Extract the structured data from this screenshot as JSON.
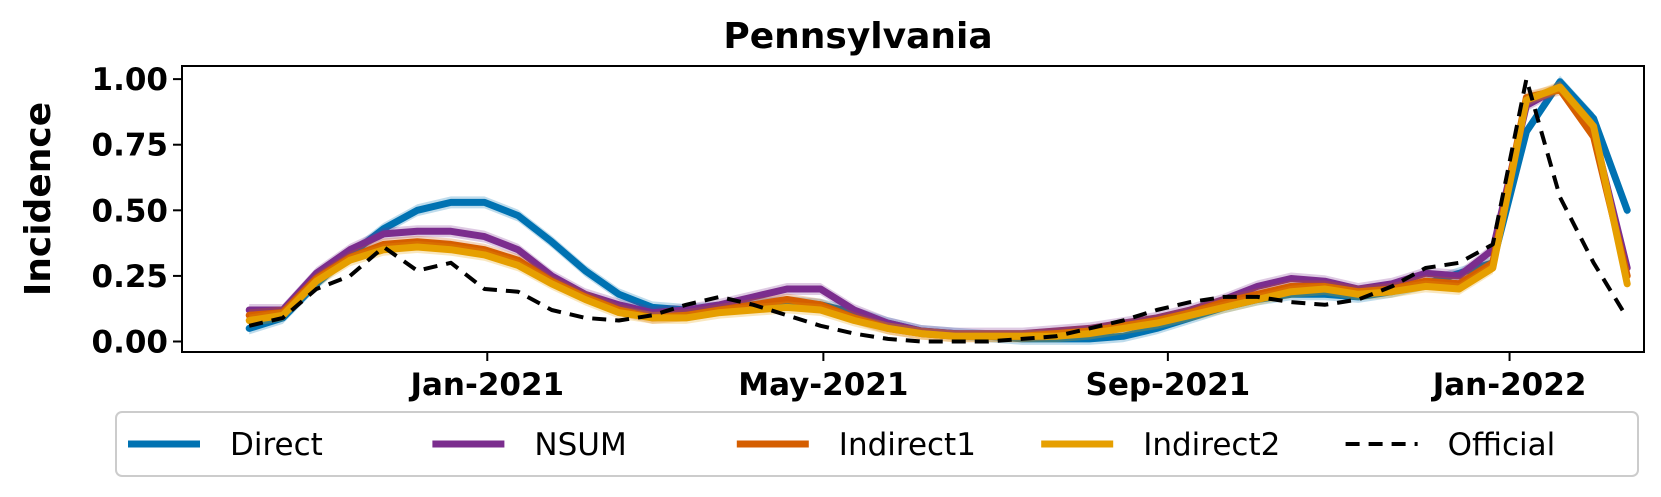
{
  "chart_data": {
    "type": "line",
    "title": "Pennsylvania",
    "xlabel": "",
    "ylabel": "Incidence",
    "x_start": "2020-09-14",
    "x": [
      "2020-10-08",
      "2020-10-20",
      "2020-11-01",
      "2020-11-13",
      "2020-11-25",
      "2020-12-07",
      "2020-12-19",
      "2020-12-31",
      "2021-01-12",
      "2021-01-24",
      "2021-02-05",
      "2021-02-17",
      "2021-03-01",
      "2021-03-13",
      "2021-03-25",
      "2021-04-06",
      "2021-04-18",
      "2021-04-30",
      "2021-05-12",
      "2021-05-24",
      "2021-06-05",
      "2021-06-17",
      "2021-06-29",
      "2021-07-11",
      "2021-07-23",
      "2021-08-04",
      "2021-08-16",
      "2021-08-28",
      "2021-09-09",
      "2021-09-21",
      "2021-10-03",
      "2021-10-15",
      "2021-10-27",
      "2021-11-08",
      "2021-11-20",
      "2021-12-02",
      "2021-12-14",
      "2021-12-26",
      "2022-01-07",
      "2022-01-19",
      "2022-01-31",
      "2022-02-12"
    ],
    "x_end": "2022-02-18",
    "xticks": [
      {
        "label": "Jan-2021",
        "date": "2021-01-01"
      },
      {
        "label": "May-2021",
        "date": "2021-05-01"
      },
      {
        "label": "Sep-2021",
        "date": "2021-09-01"
      },
      {
        "label": "Jan-2022",
        "date": "2022-01-01"
      }
    ],
    "ylim": [
      -0.04,
      1.05
    ],
    "yticks": [
      "0.00",
      "0.25",
      "0.50",
      "0.75",
      "1.00"
    ],
    "series": [
      {
        "name": "Direct",
        "color": "#0072B2",
        "style": "solid",
        "values": [
          0.05,
          0.09,
          0.22,
          0.33,
          0.43,
          0.5,
          0.53,
          0.53,
          0.48,
          0.38,
          0.27,
          0.18,
          0.13,
          0.12,
          0.13,
          0.14,
          0.15,
          0.14,
          0.11,
          0.07,
          0.04,
          0.03,
          0.02,
          0.01,
          0.01,
          0.01,
          0.02,
          0.05,
          0.09,
          0.13,
          0.16,
          0.18,
          0.18,
          0.17,
          0.19,
          0.22,
          0.26,
          0.3,
          0.8,
          0.99,
          0.85,
          0.5
        ]
      },
      {
        "name": "NSUM",
        "color": "#7B2D8E",
        "style": "solid",
        "values": [
          0.12,
          0.12,
          0.26,
          0.35,
          0.41,
          0.42,
          0.42,
          0.4,
          0.35,
          0.25,
          0.18,
          0.14,
          0.11,
          0.12,
          0.14,
          0.17,
          0.2,
          0.2,
          0.12,
          0.07,
          0.04,
          0.03,
          0.03,
          0.03,
          0.04,
          0.05,
          0.07,
          0.09,
          0.12,
          0.16,
          0.21,
          0.24,
          0.23,
          0.2,
          0.22,
          0.26,
          0.25,
          0.35,
          0.9,
          0.97,
          0.8,
          0.28
        ]
      },
      {
        "name": "Indirect1",
        "color": "#D55E00",
        "style": "solid",
        "values": [
          0.1,
          0.11,
          0.24,
          0.32,
          0.37,
          0.38,
          0.37,
          0.35,
          0.31,
          0.23,
          0.17,
          0.12,
          0.09,
          0.1,
          0.12,
          0.14,
          0.16,
          0.14,
          0.09,
          0.05,
          0.03,
          0.02,
          0.02,
          0.02,
          0.03,
          0.04,
          0.06,
          0.08,
          0.11,
          0.15,
          0.18,
          0.21,
          0.21,
          0.19,
          0.2,
          0.23,
          0.22,
          0.3,
          0.93,
          0.96,
          0.78,
          0.25
        ]
      },
      {
        "name": "Indirect2",
        "color": "#E69F00",
        "style": "solid",
        "values": [
          0.08,
          0.1,
          0.23,
          0.31,
          0.35,
          0.36,
          0.35,
          0.33,
          0.29,
          0.22,
          0.16,
          0.11,
          0.09,
          0.09,
          0.11,
          0.12,
          0.13,
          0.12,
          0.08,
          0.05,
          0.03,
          0.02,
          0.02,
          0.02,
          0.02,
          0.03,
          0.05,
          0.07,
          0.1,
          0.13,
          0.16,
          0.19,
          0.2,
          0.18,
          0.19,
          0.21,
          0.2,
          0.28,
          0.92,
          0.97,
          0.82,
          0.22
        ]
      },
      {
        "name": "Official",
        "color": "#000000",
        "style": "dashed",
        "values": [
          0.06,
          0.09,
          0.2,
          0.25,
          0.36,
          0.27,
          0.3,
          0.2,
          0.19,
          0.12,
          0.09,
          0.08,
          0.1,
          0.14,
          0.17,
          0.14,
          0.1,
          0.06,
          0.03,
          0.01,
          0.0,
          0.0,
          0.0,
          0.01,
          0.02,
          0.05,
          0.08,
          0.12,
          0.15,
          0.17,
          0.17,
          0.15,
          0.14,
          0.16,
          0.21,
          0.28,
          0.3,
          0.37,
          1.0,
          0.55,
          0.3,
          0.09
        ]
      }
    ],
    "legend": {
      "position": "bottom",
      "ncol": 5
    },
    "grid": false
  }
}
